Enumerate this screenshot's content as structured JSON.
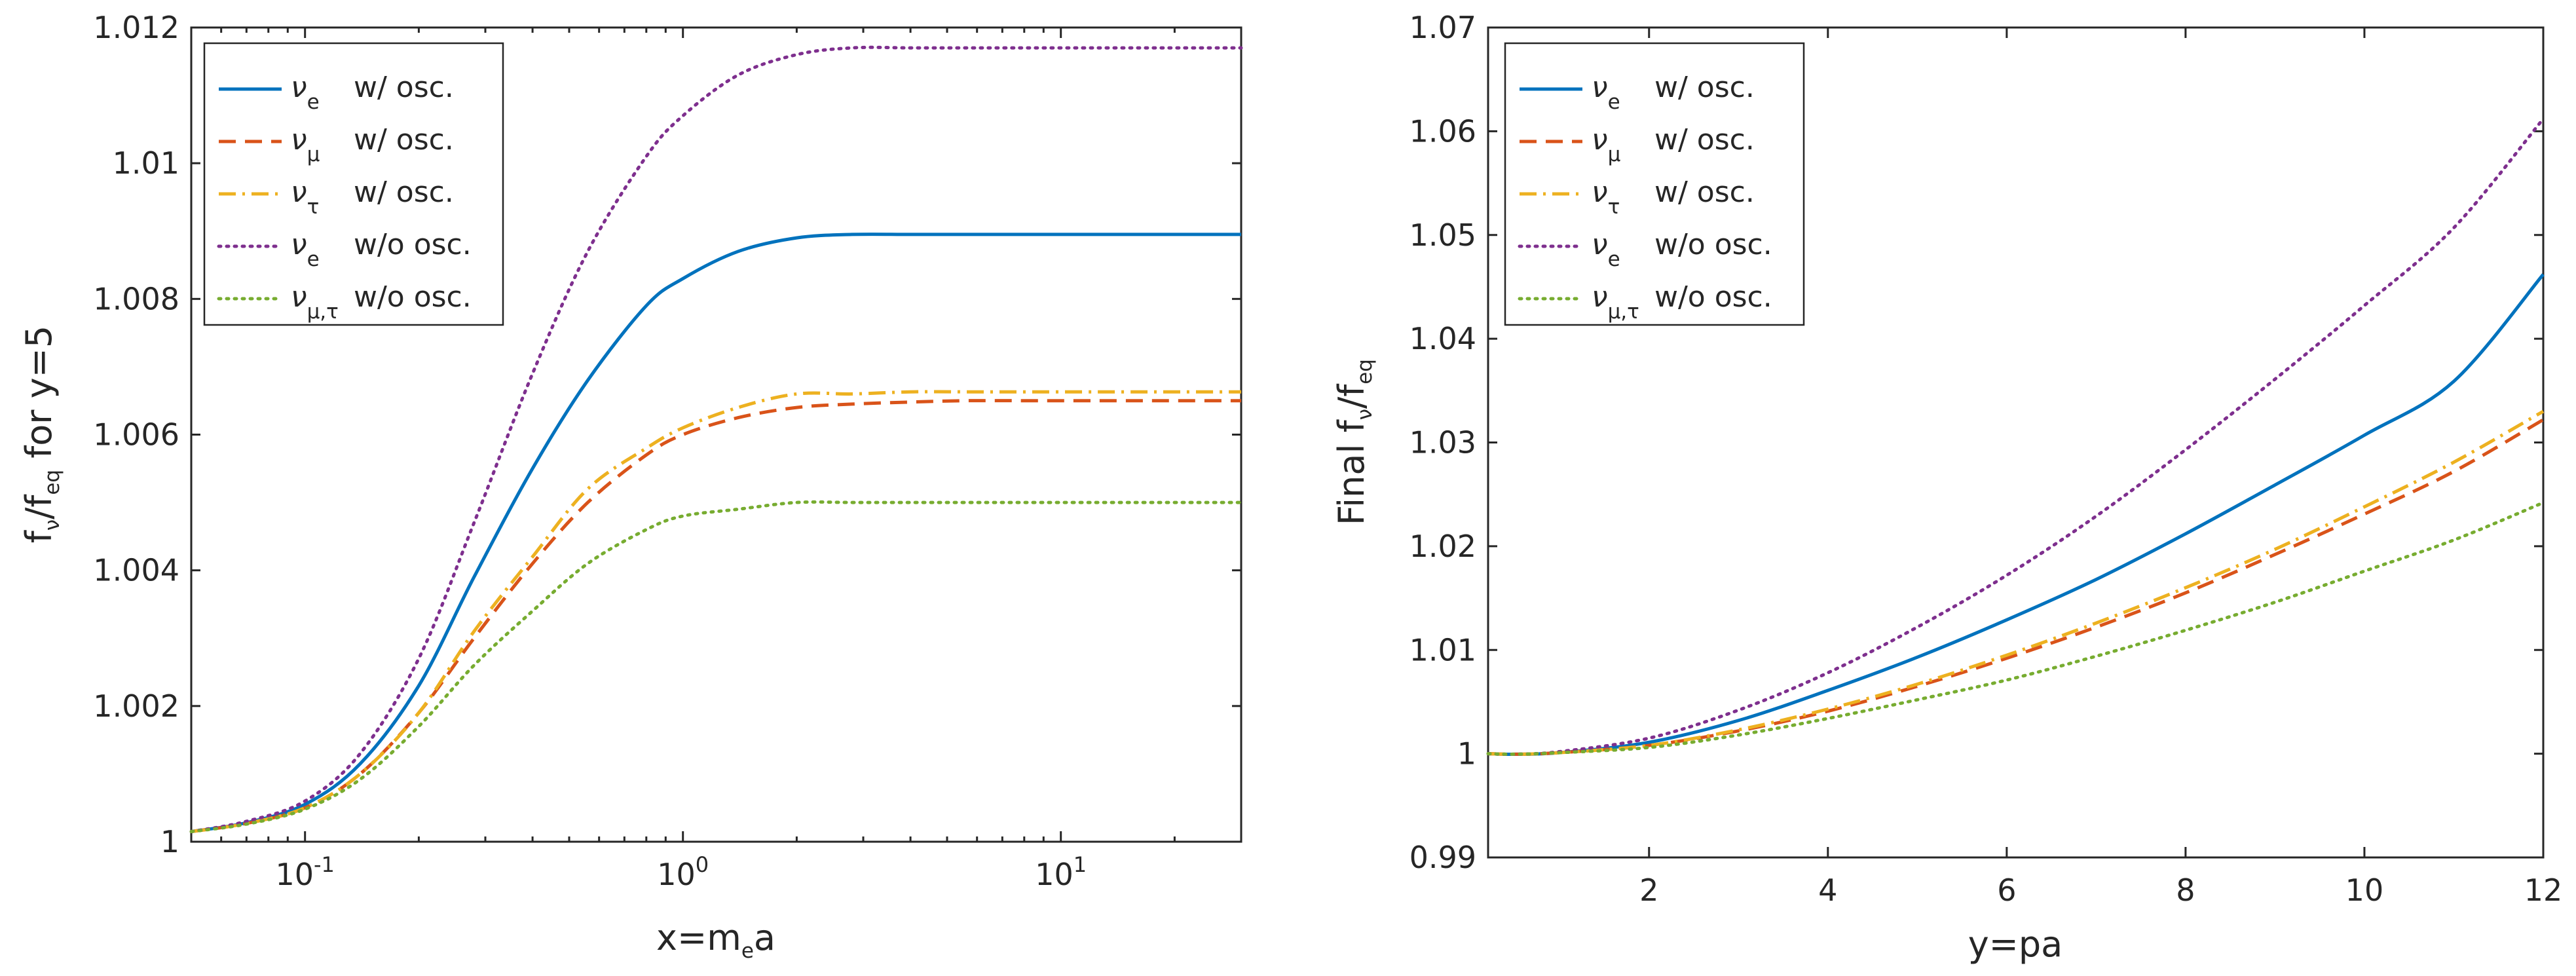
{
  "legend": {
    "entries": [
      {
        "symbol": "ν",
        "sub": "e",
        "text": "w/ osc."
      },
      {
        "symbol": "ν",
        "sub": "μ",
        "text": "w/ osc."
      },
      {
        "symbol": "ν",
        "sub": "τ",
        "text": "w/ osc."
      },
      {
        "symbol": "ν",
        "sub": "e",
        "text": "w/o osc."
      },
      {
        "symbol": "ν",
        "sub": "μ,τ",
        "text": "w/o osc."
      }
    ]
  },
  "series_styles": [
    {
      "color": "#0072BD",
      "dash": "solid"
    },
    {
      "color": "#D95319",
      "dash": "dashed"
    },
    {
      "color": "#EDB120",
      "dash": "dashdot"
    },
    {
      "color": "#7E2F8E",
      "dash": "dotted"
    },
    {
      "color": "#77AC30",
      "dash": "dotted"
    }
  ],
  "chart_data": [
    {
      "type": "line",
      "xscale": "log",
      "title": "",
      "xlabel": "x=m_e a",
      "ylabel": "f_ν/f_eq for y=5",
      "xlim": [
        0.05,
        30
      ],
      "ylim": [
        1,
        1.012
      ],
      "xticks": [
        {
          "value": 0.1,
          "base": "10",
          "exp": "-1"
        },
        {
          "value": 1,
          "base": "10",
          "exp": "0"
        },
        {
          "value": 10,
          "base": "10",
          "exp": "1"
        }
      ],
      "yticks": [
        {
          "value": 1,
          "label": "1"
        },
        {
          "value": 1.002,
          "label": "1.002"
        },
        {
          "value": 1.004,
          "label": "1.004"
        },
        {
          "value": 1.006,
          "label": "1.006"
        },
        {
          "value": 1.008,
          "label": "1.008"
        },
        {
          "value": 1.01,
          "label": "1.01"
        },
        {
          "value": 1.012,
          "label": "1.012"
        }
      ],
      "legend_position": "top-left",
      "x": [
        0.05,
        0.07,
        0.1,
        0.14,
        0.2,
        0.28,
        0.4,
        0.56,
        0.8,
        1.0,
        1.4,
        2.0,
        2.8,
        4.0,
        5.6,
        8.0,
        14.0,
        20.0,
        30.0
      ],
      "series": [
        {
          "name": "ν_e w/ osc.",
          "values": [
            1.00015,
            1.00028,
            1.00055,
            1.00115,
            1.0023,
            1.0039,
            1.0055,
            1.0068,
            1.0079,
            1.0083,
            1.0087,
            1.0089,
            1.00895,
            1.00895,
            1.00895,
            1.00895,
            1.00895,
            1.00895,
            1.00895
          ]
        },
        {
          "name": "ν_μ w/ osc.",
          "values": [
            1.00015,
            1.00027,
            1.0005,
            1.001,
            1.0019,
            1.003,
            1.0041,
            1.005,
            1.0057,
            1.006,
            1.00625,
            1.0064,
            1.00645,
            1.00648,
            1.0065,
            1.0065,
            1.0065,
            1.0065,
            1.0065
          ]
        },
        {
          "name": "ν_τ w/ osc.",
          "values": [
            1.00015,
            1.00027,
            1.0005,
            1.001,
            1.0019,
            1.0031,
            1.0042,
            1.0052,
            1.0058,
            1.0061,
            1.0064,
            1.0066,
            1.0066,
            1.00663,
            1.00663,
            1.00663,
            1.00663,
            1.00663,
            1.00663
          ]
        },
        {
          "name": "ν_e w/o osc.",
          "values": [
            1.00015,
            1.0003,
            1.0006,
            1.0013,
            1.0027,
            1.0047,
            1.0069,
            1.0087,
            1.0101,
            1.0107,
            1.0113,
            1.0116,
            1.0117,
            1.0117,
            1.0117,
            1.0117,
            1.0117,
            1.0117,
            1.0117
          ]
        },
        {
          "name": "ν_μ,τ w/o osc.",
          "values": [
            1.00015,
            1.00026,
            1.00048,
            1.00092,
            1.0017,
            1.0026,
            1.0034,
            1.0041,
            1.0046,
            1.0048,
            1.0049,
            1.005,
            1.005,
            1.005,
            1.005,
            1.005,
            1.005,
            1.005,
            1.005
          ]
        }
      ]
    },
    {
      "type": "line",
      "xscale": "linear",
      "title": "",
      "xlabel": "y=pa",
      "ylabel": "Final f_ν/f_eq",
      "xlim": [
        0.2,
        12
      ],
      "ylim": [
        0.99,
        1.07
      ],
      "xticks": [
        {
          "value": 2,
          "label": "2"
        },
        {
          "value": 4,
          "label": "4"
        },
        {
          "value": 6,
          "label": "6"
        },
        {
          "value": 8,
          "label": "8"
        },
        {
          "value": 10,
          "label": "10"
        },
        {
          "value": 12,
          "label": "12"
        }
      ],
      "yticks": [
        {
          "value": 0.99,
          "label": "0.99"
        },
        {
          "value": 1,
          "label": "1"
        },
        {
          "value": 1.01,
          "label": "1.01"
        },
        {
          "value": 1.02,
          "label": "1.02"
        },
        {
          "value": 1.03,
          "label": "1.03"
        },
        {
          "value": 1.04,
          "label": "1.04"
        },
        {
          "value": 1.05,
          "label": "1.05"
        },
        {
          "value": 1.06,
          "label": "1.06"
        },
        {
          "value": 1.07,
          "label": "1.07"
        }
      ],
      "legend_position": "top-left",
      "x": [
        0.2,
        0.5,
        1,
        2,
        3,
        4,
        5,
        6,
        7,
        8,
        9,
        10,
        11,
        12
      ],
      "series": [
        {
          "name": "ν_e w/ osc.",
          "values": [
            1.0,
            0.99995,
            1.0001,
            1.0011,
            1.0032,
            1.0061,
            1.0093,
            1.0129,
            1.0168,
            1.0212,
            1.0259,
            1.0307,
            1.0359,
            1.0462
          ]
        },
        {
          "name": "ν_μ w/ osc.",
          "values": [
            1.0,
            0.99995,
            1.0001,
            1.0008,
            1.0022,
            1.0041,
            1.0065,
            1.0092,
            1.0122,
            1.0155,
            1.0192,
            1.0231,
            1.0272,
            1.0322
          ]
        },
        {
          "name": "ν_τ w/ osc.",
          "values": [
            1.0,
            0.99995,
            1.0001,
            1.0008,
            1.0023,
            1.0043,
            1.0067,
            1.0095,
            1.0126,
            1.016,
            1.0197,
            1.0238,
            1.0281,
            1.033
          ]
        },
        {
          "name": "ν_e w/o osc.",
          "values": [
            1.0,
            0.99995,
            1.0002,
            1.0015,
            1.0042,
            1.0078,
            1.0122,
            1.0172,
            1.0229,
            1.0293,
            1.0361,
            1.0432,
            1.0507,
            1.0612
          ]
        },
        {
          "name": "ν_μ,τ w/o osc.",
          "values": [
            1.0,
            0.99995,
            1.0001,
            1.0006,
            1.0018,
            1.0034,
            1.0052,
            1.0071,
            1.0094,
            1.0119,
            1.0146,
            1.0176,
            1.0206,
            1.0242
          ]
        }
      ]
    }
  ]
}
